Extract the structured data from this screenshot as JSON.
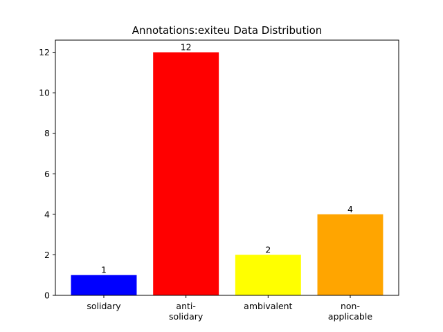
{
  "chart_data": {
    "type": "bar",
    "title": "Annotations:exiteu Data Distribution",
    "xlabel": "",
    "ylabel": "",
    "categories": [
      [
        "solidary"
      ],
      [
        "anti-",
        "solidary"
      ],
      [
        "ambivalent"
      ],
      [
        "non-",
        "applicable"
      ]
    ],
    "values": [
      1,
      12,
      2,
      4
    ],
    "data_labels": [
      "1",
      "12",
      "2",
      "4"
    ],
    "colors": [
      "#0000ff",
      "#ff0000",
      "#ffff00",
      "#ffa500"
    ],
    "ylim": [
      0,
      12.6
    ],
    "yticks": [
      0,
      2,
      4,
      6,
      8,
      10,
      12
    ],
    "ytick_labels": [
      "0",
      "2",
      "4",
      "6",
      "8",
      "10",
      "12"
    ],
    "grid": false,
    "legend": "none"
  }
}
